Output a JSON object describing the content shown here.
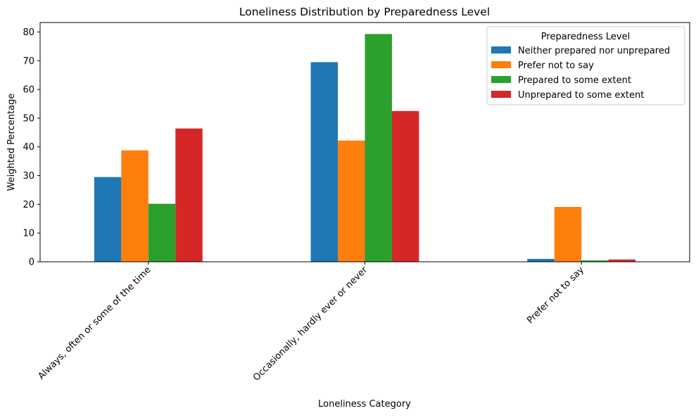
{
  "chart_data": {
    "type": "bar",
    "title": "Loneliness Distribution by Preparedness Level",
    "xlabel": "Loneliness Category",
    "ylabel": "Weighted Percentage",
    "categories": [
      "Always, often or some of the time",
      "Occasionally, hardly ever or never",
      "Prefer not to say"
    ],
    "series": [
      {
        "name": "Neither prepared nor unprepared",
        "color": "#1f77b4",
        "values": [
          29.5,
          69.5,
          1.0
        ]
      },
      {
        "name": "Prefer not to say",
        "color": "#ff7f0e",
        "values": [
          38.8,
          42.2,
          19.1
        ]
      },
      {
        "name": "Prepared to some extent",
        "color": "#2ca02c",
        "values": [
          20.2,
          79.3,
          0.5
        ]
      },
      {
        "name": "Unprepared to some extent",
        "color": "#d62728",
        "values": [
          46.4,
          52.5,
          0.8
        ]
      }
    ],
    "yticks": [
      "0",
      "10",
      "20",
      "30",
      "40",
      "50",
      "60",
      "70",
      "80"
    ],
    "ylim": [
      0,
      83.3
    ],
    "grid": false,
    "legend": {
      "title": "Preparedness Level",
      "placement": "top-right"
    }
  }
}
